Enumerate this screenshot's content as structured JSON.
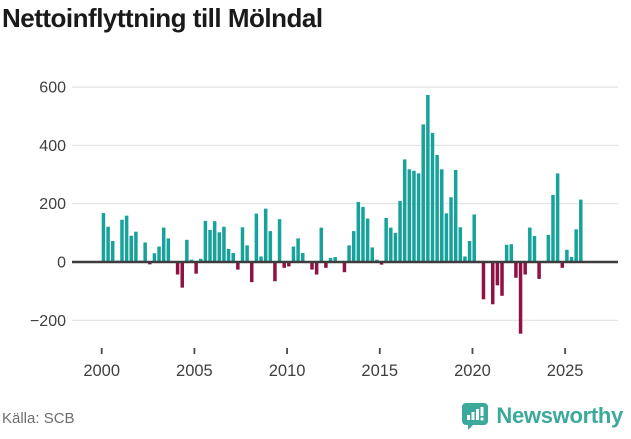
{
  "title": "Nettoinflyttning till Mölndal",
  "footer": {
    "source_label": "Källa: SCB",
    "brand": "Newsworthy"
  },
  "colors": {
    "positive": "#17A29B",
    "negative": "#8E1244",
    "grid": "#E3E3E3",
    "zero_axis": "#3d3d3d",
    "tick_text": "#3f3f3f",
    "source_text": "#6e6e6e",
    "brand_teal": "#3BA99C",
    "title_text": "#1a1a1a"
  },
  "chart_data": {
    "type": "bar",
    "title": "Nettoinflyttning till Mölndal",
    "xlabel": "",
    "ylabel": "",
    "period": "quarterly",
    "start": "2000-Q1",
    "end": "2025-Q4",
    "x_tick_years": [
      2000,
      2005,
      2010,
      2015,
      2020,
      2025
    ],
    "y_ticks": [
      600,
      400,
      200,
      0,
      -200
    ],
    "ylim": [
      -280,
      620
    ],
    "grid": "horizontal",
    "legend": "none",
    "values": [
      168,
      121,
      72,
      5,
      145,
      159,
      90,
      104,
      5,
      67,
      -8,
      30,
      53,
      118,
      81,
      0,
      -43,
      -88,
      76,
      8,
      -40,
      11,
      141,
      110,
      140,
      102,
      121,
      45,
      31,
      -26,
      119,
      57,
      -69,
      166,
      19,
      183,
      106,
      -66,
      147,
      -20,
      -15,
      53,
      81,
      31,
      0,
      -26,
      -43,
      118,
      -20,
      14,
      17,
      0,
      -35,
      57,
      106,
      206,
      189,
      149,
      50,
      8,
      -9,
      151,
      118,
      100,
      209,
      352,
      318,
      313,
      304,
      472,
      573,
      443,
      367,
      318,
      167,
      222,
      316,
      119,
      19,
      72,
      163,
      0,
      -128,
      0,
      -145,
      -80,
      -116,
      59,
      61,
      -54,
      -246,
      -43,
      118,
      89,
      -58,
      0,
      93,
      230,
      304,
      -20,
      42,
      17,
      112,
      214
    ]
  }
}
